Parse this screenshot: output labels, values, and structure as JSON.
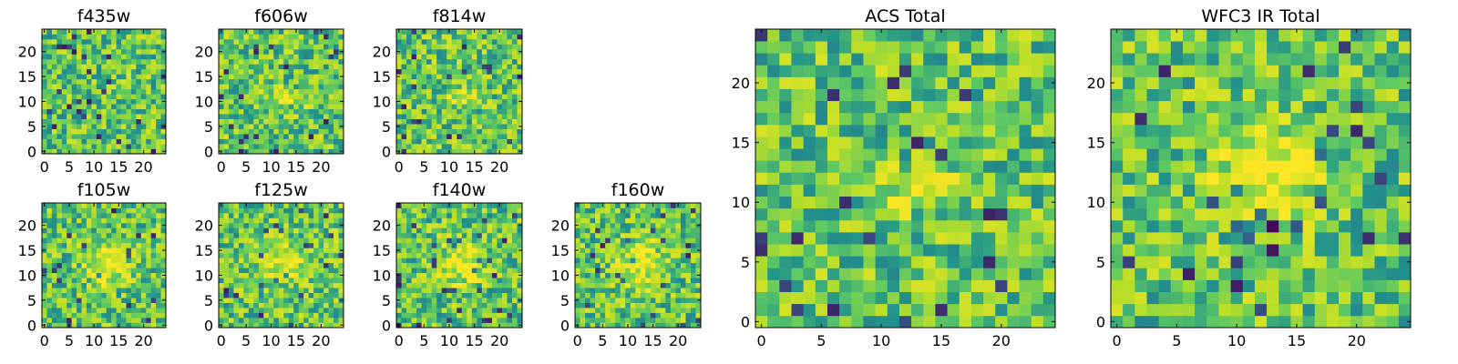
{
  "chart_data": [
    {
      "type": "heatmap",
      "title": "f435w",
      "xticks": [
        0,
        5,
        10,
        15,
        20
      ],
      "yticks": [
        0,
        5,
        10,
        15,
        20
      ],
      "xlim": [
        0,
        25
      ],
      "ylim": [
        0,
        25
      ],
      "grid_size": 25,
      "colormap": [
        "#440154",
        "#31688e",
        "#21918c",
        "#5ec962",
        "#b8de29",
        "#fde725"
      ],
      "center_feature": "none",
      "seed": 11
    },
    {
      "type": "heatmap",
      "title": "f606w",
      "xticks": [
        0,
        5,
        10,
        15,
        20
      ],
      "yticks": [
        0,
        5,
        10,
        15,
        20
      ],
      "xlim": [
        0,
        25
      ],
      "ylim": [
        0,
        25
      ],
      "grid_size": 25,
      "colormap": [
        "#440154",
        "#31688e",
        "#21918c",
        "#5ec962",
        "#b8de29",
        "#fde725"
      ],
      "center_feature": "arc",
      "seed": 22
    },
    {
      "type": "heatmap",
      "title": "f814w",
      "xticks": [
        0,
        5,
        10,
        15,
        20
      ],
      "yticks": [
        0,
        5,
        10,
        15,
        20
      ],
      "xlim": [
        0,
        25
      ],
      "ylim": [
        0,
        25
      ],
      "grid_size": 25,
      "colormap": [
        "#440154",
        "#31688e",
        "#21918c",
        "#5ec962",
        "#b8de29",
        "#fde725"
      ],
      "center_feature": "arc",
      "seed": 33
    },
    {
      "type": "heatmap",
      "title": "f105w",
      "xticks": [
        0,
        5,
        10,
        15,
        20
      ],
      "yticks": [
        0,
        5,
        10,
        15,
        20
      ],
      "xlim": [
        0,
        25
      ],
      "ylim": [
        0,
        25
      ],
      "grid_size": 25,
      "colormap": [
        "#440154",
        "#31688e",
        "#21918c",
        "#5ec962",
        "#b8de29",
        "#fde725"
      ],
      "center_feature": "blob",
      "seed": 44
    },
    {
      "type": "heatmap",
      "title": "f125w",
      "xticks": [
        0,
        5,
        10,
        15,
        20
      ],
      "yticks": [
        0,
        5,
        10,
        15,
        20
      ],
      "xlim": [
        0,
        25
      ],
      "ylim": [
        0,
        25
      ],
      "grid_size": 25,
      "colormap": [
        "#440154",
        "#31688e",
        "#21918c",
        "#5ec962",
        "#b8de29",
        "#fde725"
      ],
      "center_feature": "blob",
      "seed": 55
    },
    {
      "type": "heatmap",
      "title": "f140w",
      "xticks": [
        0,
        5,
        10,
        15,
        20
      ],
      "yticks": [
        0,
        5,
        10,
        15,
        20
      ],
      "xlim": [
        0,
        25
      ],
      "ylim": [
        0,
        25
      ],
      "grid_size": 25,
      "colormap": [
        "#440154",
        "#31688e",
        "#21918c",
        "#5ec962",
        "#b8de29",
        "#fde725"
      ],
      "center_feature": "blob",
      "seed": 66
    },
    {
      "type": "heatmap",
      "title": "f160w",
      "xticks": [
        0,
        5,
        10,
        15,
        20
      ],
      "yticks": [
        0,
        5,
        10,
        15,
        20
      ],
      "xlim": [
        0,
        25
      ],
      "ylim": [
        0,
        25
      ],
      "grid_size": 25,
      "colormap": [
        "#440154",
        "#31688e",
        "#21918c",
        "#5ec962",
        "#b8de29",
        "#fde725"
      ],
      "center_feature": "blob",
      "seed": 77
    },
    {
      "type": "heatmap",
      "title": "ACS Total",
      "xticks": [
        0,
        5,
        10,
        15,
        20
      ],
      "yticks": [
        0,
        5,
        10,
        15,
        20
      ],
      "xlim": [
        0,
        25
      ],
      "ylim": [
        0,
        25
      ],
      "grid_size": 25,
      "colormap": [
        "#440154",
        "#31688e",
        "#21918c",
        "#5ec962",
        "#b8de29",
        "#fde725"
      ],
      "center_feature": "arc",
      "seed": 88
    },
    {
      "type": "heatmap",
      "title": "WFC3 IR Total",
      "xticks": [
        0,
        5,
        10,
        15,
        20
      ],
      "yticks": [
        0,
        5,
        10,
        15,
        20
      ],
      "xlim": [
        0,
        25
      ],
      "ylim": [
        0,
        25
      ],
      "grid_size": 25,
      "colormap": [
        "#440154",
        "#31688e",
        "#21918c",
        "#5ec962",
        "#b8de29",
        "#fde725"
      ],
      "center_feature": "big-blob",
      "seed": 99
    }
  ]
}
